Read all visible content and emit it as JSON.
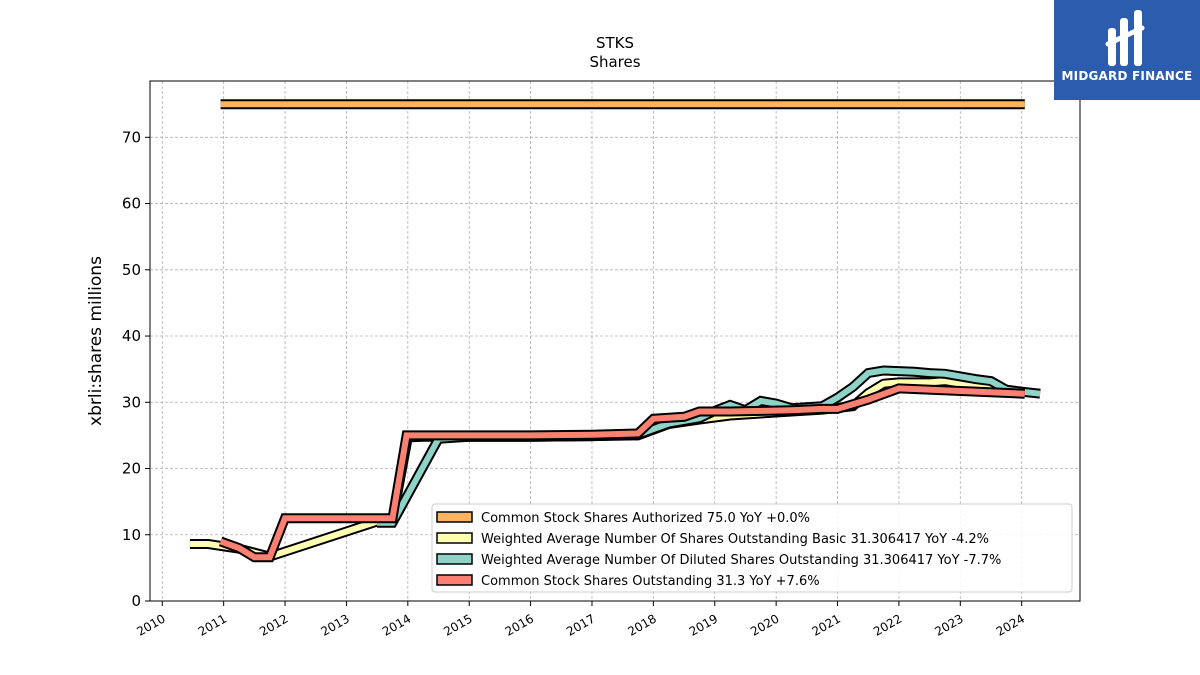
{
  "brand": {
    "name": "MIDGARD FINANCE",
    "color": "#2b5cae"
  },
  "chart_data": {
    "type": "line",
    "title": "STKS",
    "subtitle": "Shares",
    "ylabel": "xbrli:shares millions",
    "xlabel": "",
    "xlim": [
      2009.8,
      2024.95
    ],
    "ylim": [
      0,
      78.5
    ],
    "yticks": [
      0,
      10,
      20,
      30,
      40,
      50,
      60,
      70
    ],
    "xticks": [
      2010,
      2011,
      2012,
      2013,
      2014,
      2015,
      2016,
      2017,
      2018,
      2019,
      2020,
      2021,
      2022,
      2023,
      2024
    ],
    "grid": true,
    "legend_position": "lower-right",
    "series": [
      {
        "name": "Common Stock Shares Authorized",
        "legend": "Common Stock Shares Authorized  75.0 YoY +0.0%",
        "color": "#fdb462",
        "points": [
          [
            2010.95,
            75.0
          ],
          [
            2024.05,
            75.0
          ]
        ]
      },
      {
        "name": "Weighted Average Number Of Shares Outstanding Basic",
        "legend": "Weighted Average Number Of Shares Outstanding Basic  31.306417 YoY -4.2%",
        "color": "#ffffb3",
        "points": [
          [
            2010.45,
            8.6
          ],
          [
            2010.75,
            8.6
          ],
          [
            2011.25,
            7.9
          ],
          [
            2011.75,
            6.7
          ],
          [
            2013.5,
            12.0
          ],
          [
            2013.75,
            12.3
          ],
          [
            2014.0,
            24.7
          ],
          [
            2014.25,
            24.8
          ],
          [
            2015.0,
            24.8
          ],
          [
            2016.0,
            24.8
          ],
          [
            2017.0,
            24.9
          ],
          [
            2017.75,
            25.0
          ],
          [
            2018.25,
            26.7
          ],
          [
            2018.75,
            27.4
          ],
          [
            2019.25,
            28.0
          ],
          [
            2019.75,
            28.3
          ],
          [
            2020.25,
            28.6
          ],
          [
            2020.75,
            28.9
          ],
          [
            2021.25,
            29.4
          ],
          [
            2021.5,
            31.4
          ],
          [
            2021.75,
            32.8
          ],
          [
            2022.0,
            33.0
          ],
          [
            2022.5,
            33.0
          ],
          [
            2022.75,
            33.2
          ],
          [
            2023.0,
            32.8
          ],
          [
            2023.5,
            32.1
          ],
          [
            2023.75,
            31.9
          ],
          [
            2024.05,
            31.3
          ]
        ]
      },
      {
        "name": "Weighted Average Number Of Diluted Shares Outstanding",
        "legend": "Weighted Average Number Of Diluted Shares Outstanding  31.306417 YoY -7.7%",
        "color": "#8dd3c7",
        "points": [
          [
            2013.5,
            11.8
          ],
          [
            2013.75,
            11.8
          ],
          [
            2014.5,
            24.5
          ],
          [
            2015.0,
            24.8
          ],
          [
            2016.0,
            24.8
          ],
          [
            2017.0,
            24.9
          ],
          [
            2017.75,
            25.1
          ],
          [
            2018.25,
            26.8
          ],
          [
            2018.75,
            27.6
          ],
          [
            2019.0,
            28.7
          ],
          [
            2019.25,
            29.6
          ],
          [
            2019.5,
            28.8
          ],
          [
            2019.75,
            30.2
          ],
          [
            2020.0,
            29.8
          ],
          [
            2020.25,
            29.1
          ],
          [
            2020.75,
            29.4
          ],
          [
            2021.0,
            30.7
          ],
          [
            2021.25,
            32.3
          ],
          [
            2021.5,
            34.4
          ],
          [
            2021.75,
            34.8
          ],
          [
            2022.0,
            34.7
          ],
          [
            2022.25,
            34.6
          ],
          [
            2022.5,
            34.4
          ],
          [
            2022.75,
            34.3
          ],
          [
            2023.0,
            33.9
          ],
          [
            2023.25,
            33.5
          ],
          [
            2023.5,
            33.2
          ],
          [
            2023.75,
            31.9
          ],
          [
            2024.0,
            31.6
          ],
          [
            2024.3,
            31.3
          ]
        ]
      },
      {
        "name": "Common Stock Shares Outstanding",
        "legend": "Common Stock Shares Outstanding  31.3 YoY +7.6%",
        "color": "#fb8072",
        "points": [
          [
            2010.95,
            9.0
          ],
          [
            2011.25,
            8.0
          ],
          [
            2011.5,
            6.6
          ],
          [
            2011.75,
            6.6
          ],
          [
            2012.0,
            12.5
          ],
          [
            2012.25,
            12.5
          ],
          [
            2013.75,
            12.5
          ],
          [
            2013.98,
            25.0
          ],
          [
            2014.5,
            25.0
          ],
          [
            2015.0,
            25.0
          ],
          [
            2016.0,
            25.0
          ],
          [
            2017.0,
            25.1
          ],
          [
            2017.75,
            25.3
          ],
          [
            2018.0,
            27.5
          ],
          [
            2018.5,
            27.8
          ],
          [
            2018.75,
            28.6
          ],
          [
            2019.25,
            28.6
          ],
          [
            2019.75,
            28.7
          ],
          [
            2020.25,
            28.8
          ],
          [
            2020.75,
            29.0
          ],
          [
            2021.0,
            29.0
          ],
          [
            2021.5,
            30.4
          ],
          [
            2022.0,
            32.1
          ],
          [
            2024.05,
            31.3
          ]
        ]
      }
    ]
  }
}
